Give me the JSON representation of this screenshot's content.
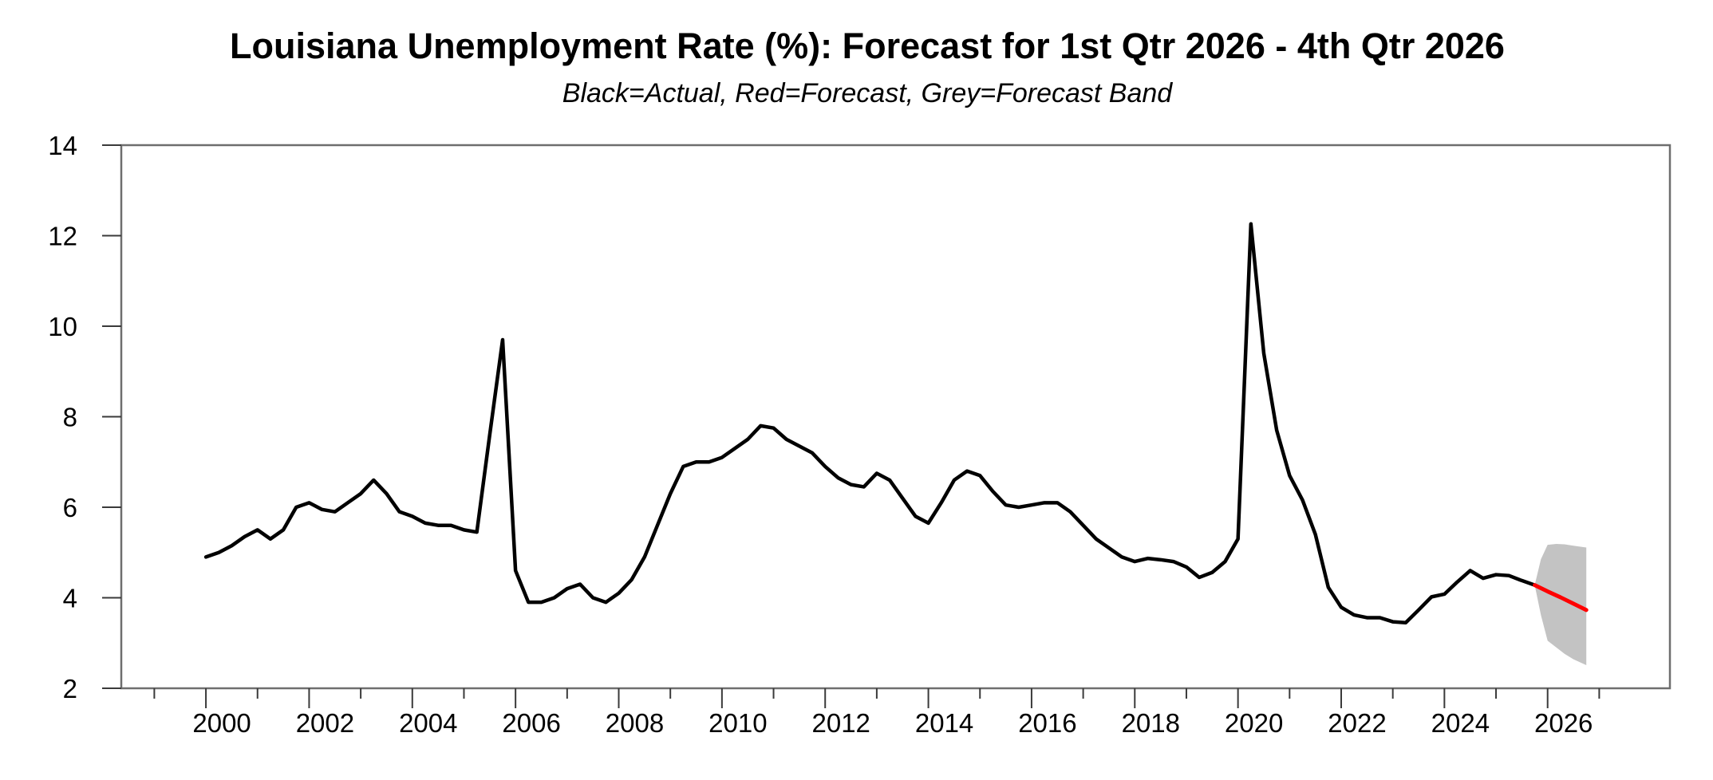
{
  "header": {
    "title": "Louisiana Unemployment Rate (%): Forecast for 1st Qtr 2026 - 4th Qtr 2026",
    "subtitle": "Black=Actual, Red=Forecast, Grey=Forecast Band"
  },
  "chart_data": {
    "type": "line",
    "title": "Louisiana Unemployment Rate (%): Forecast for 1st Qtr 2026 - 4th Qtr 2026",
    "subtitle": "Black=Actual, Red=Forecast, Grey=Forecast Band",
    "grid": false,
    "legend_position": "none",
    "x_axis": {
      "domain_years": [
        1998.36,
        2028.37
      ],
      "major_label_years": [
        2000,
        2002,
        2004,
        2006,
        2008,
        2010,
        2012,
        2014,
        2016,
        2018,
        2020,
        2022,
        2024,
        2026
      ],
      "minor_tick_years": [
        1999,
        2001,
        2003,
        2005,
        2007,
        2009,
        2011,
        2013,
        2015,
        2017,
        2019,
        2021,
        2023,
        2025,
        2027
      ]
    },
    "y_axis": {
      "min": 2,
      "max": 14,
      "ticks": [
        2,
        4,
        6,
        8,
        10,
        12,
        14
      ]
    },
    "series": [
      {
        "name": "Actual",
        "color": "#000000",
        "frequency": "quarterly",
        "start": "2000Q1",
        "start_year": 2000.0,
        "values": [
          4.9,
          5.0,
          5.15,
          5.35,
          5.5,
          5.3,
          5.5,
          6.0,
          6.1,
          5.95,
          5.9,
          6.1,
          6.3,
          6.6,
          6.3,
          5.9,
          5.8,
          5.65,
          5.6,
          5.6,
          5.5,
          5.45,
          7.6,
          9.7,
          4.6,
          3.9,
          3.9,
          4.0,
          4.2,
          4.3,
          4.0,
          3.9,
          4.1,
          4.4,
          4.9,
          5.6,
          6.3,
          6.9,
          7.0,
          7.0,
          7.1,
          7.3,
          7.5,
          7.8,
          7.75,
          7.5,
          7.35,
          7.2,
          6.9,
          6.65,
          6.5,
          6.45,
          6.75,
          6.6,
          6.2,
          5.8,
          5.65,
          6.1,
          6.6,
          6.8,
          6.7,
          6.35,
          6.05,
          6.0,
          6.05,
          6.1,
          6.1,
          5.9,
          5.6,
          5.3,
          5.1,
          4.9,
          4.8,
          4.87,
          4.84,
          4.8,
          4.68,
          4.45,
          4.56,
          4.8,
          5.3,
          12.26,
          9.4,
          7.7,
          6.7,
          6.16,
          5.4,
          4.23,
          3.79,
          3.62,
          3.56,
          3.56,
          3.47,
          3.45,
          3.73,
          4.02,
          4.08,
          4.35,
          4.6,
          4.43,
          4.51,
          4.49,
          4.38,
          4.28
        ]
      },
      {
        "name": "Forecast",
        "color": "#ff0000",
        "frequency": "quarterly",
        "start": "2025Q4",
        "x_years": [
          2025.75,
          2026.0,
          2026.25,
          2026.5,
          2026.75
        ],
        "values": [
          4.28,
          4.14,
          4.01,
          3.87,
          3.73
        ]
      }
    ],
    "forecast_band": {
      "name": "Forecast Band",
      "color": "#c3c3c3",
      "x_years": [
        2025.75,
        2025.87,
        2026.0,
        2026.17,
        2026.33,
        2026.5,
        2026.75
      ],
      "top": [
        4.28,
        4.85,
        5.17,
        5.19,
        5.18,
        5.15,
        5.11
      ],
      "bottom": [
        4.28,
        3.62,
        3.05,
        2.9,
        2.76,
        2.64,
        2.51
      ]
    },
    "colors": {
      "actual_line": "#000000",
      "forecast_line": "#ff0000",
      "band_fill": "#c3c3c3",
      "frame": "#6e6e6e",
      "tick": "#3a3a3a",
      "text": "#000000",
      "background": "#ffffff"
    }
  }
}
